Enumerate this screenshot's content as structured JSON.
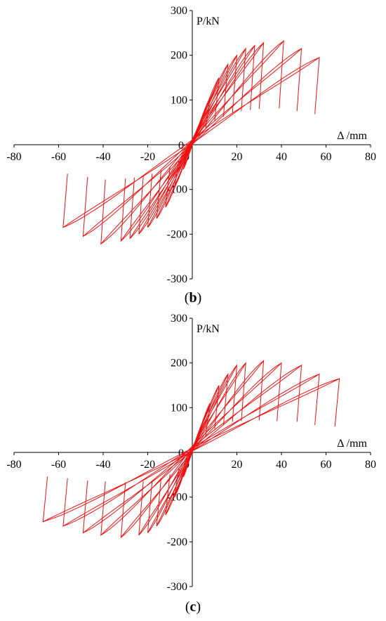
{
  "chart_data": [
    {
      "type": "line",
      "panel_label": "b",
      "xlabel": "Δ /mm",
      "ylabel": "P/kN",
      "xlim": [
        -80,
        80
      ],
      "ylim": [
        -300,
        300
      ],
      "xticks": [
        -80,
        -60,
        -40,
        -20,
        0,
        20,
        40,
        60,
        80
      ],
      "yticks": [
        300,
        200,
        100,
        0,
        -100,
        -200,
        -300
      ],
      "series_color": "#ee1111",
      "grid": false,
      "loops": [
        {
          "dmax": 4,
          "dmin": -4,
          "pmax": 55,
          "pmin": -55
        },
        {
          "dmax": 8,
          "dmin": -8,
          "pmax": 105,
          "pmin": -95
        },
        {
          "dmax": 12,
          "dmin": -12,
          "pmax": 150,
          "pmin": -140
        },
        {
          "dmax": 16,
          "dmin": -16,
          "pmax": 180,
          "pmin": -165
        },
        {
          "dmax": 20,
          "dmin": -20,
          "pmax": 200,
          "pmin": -185
        },
        {
          "dmax": 24,
          "dmin": -24,
          "pmax": 215,
          "pmin": -200
        },
        {
          "dmax": 28,
          "dmin": -28,
          "pmax": 222,
          "pmin": -210
        },
        {
          "dmax": 32,
          "dmin": -32,
          "pmax": 228,
          "pmin": -215
        },
        {
          "dmax": 41,
          "dmin": -41,
          "pmax": 232,
          "pmin": -222
        },
        {
          "dmax": 49,
          "dmin": -49,
          "pmax": 215,
          "pmin": -205
        },
        {
          "dmax": 57,
          "dmin": -58,
          "pmax": 195,
          "pmin": -185
        }
      ]
    },
    {
      "type": "line",
      "panel_label": "c",
      "xlabel": "Δ /mm",
      "ylabel": "P/kN",
      "xlim": [
        -80,
        80
      ],
      "ylim": [
        -300,
        300
      ],
      "xticks": [
        -80,
        -60,
        -40,
        -20,
        0,
        20,
        40,
        60,
        80
      ],
      "yticks": [
        300,
        200,
        100,
        0,
        -100,
        -200,
        -300
      ],
      "series_color": "#ee1111",
      "grid": false,
      "loops": [
        {
          "dmax": 4,
          "dmin": -4,
          "pmax": 60,
          "pmin": -55
        },
        {
          "dmax": 8,
          "dmin": -8,
          "pmax": 110,
          "pmin": -100
        },
        {
          "dmax": 12,
          "dmin": -12,
          "pmax": 150,
          "pmin": -140
        },
        {
          "dmax": 16,
          "dmin": -16,
          "pmax": 175,
          "pmin": -165
        },
        {
          "dmax": 20,
          "dmin": -20,
          "pmax": 195,
          "pmin": -180
        },
        {
          "dmax": 24,
          "dmin": -24,
          "pmax": 200,
          "pmin": -185
        },
        {
          "dmax": 32,
          "dmin": -32,
          "pmax": 205,
          "pmin": -190
        },
        {
          "dmax": 40,
          "dmin": -41,
          "pmax": 200,
          "pmin": -185
        },
        {
          "dmax": 49,
          "dmin": -49,
          "pmax": 195,
          "pmin": -180
        },
        {
          "dmax": 57,
          "dmin": -58,
          "pmax": 175,
          "pmin": -165
        },
        {
          "dmax": 66,
          "dmin": -67,
          "pmax": 165,
          "pmin": -155
        }
      ]
    }
  ]
}
